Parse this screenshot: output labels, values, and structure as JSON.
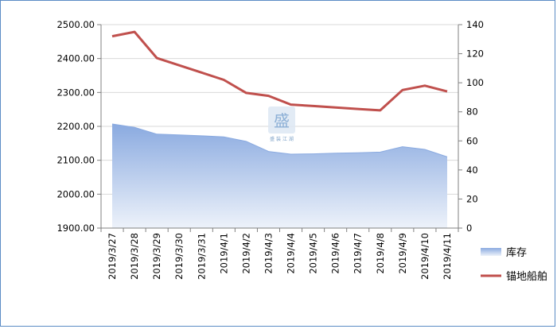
{
  "chart_data": {
    "type": "area+line",
    "categories": [
      "2019/3/27",
      "2019/3/28",
      "2019/3/29",
      "2019/3/30",
      "2019/3/31",
      "2019/4/1",
      "2019/4/2",
      "2019/4/3",
      "2019/4/4",
      "2019/4/5",
      "2019/4/6",
      "2019/4/7",
      "2019/4/8",
      "2019/4/9",
      "2019/4/10",
      "2019/4/11"
    ],
    "series": [
      {
        "name": "库存",
        "kind": "area",
        "axis": "left",
        "color": "#8eaee0",
        "values": [
          2207,
          2197,
          2177,
          2175,
          2172,
          2169,
          2156,
          2126,
          2118,
          2119,
          2121,
          2122,
          2124,
          2140,
          2132,
          2110
        ]
      },
      {
        "name": "锚地船舶",
        "kind": "line",
        "axis": "right",
        "color": "#c0504d",
        "values": [
          132,
          135,
          117,
          112,
          107,
          102,
          93,
          91,
          85,
          84,
          83,
          82,
          81,
          95,
          98,
          94
        ]
      }
    ],
    "y_left": {
      "min": 1900,
      "max": 2500,
      "step": 100,
      "ticks": [
        "1900.00",
        "2000.00",
        "2100.00",
        "2200.00",
        "2300.00",
        "2400.00",
        "2500.00"
      ]
    },
    "y_right": {
      "min": 0,
      "max": 140,
      "step": 20,
      "ticks": [
        "0",
        "20",
        "40",
        "60",
        "80",
        "100",
        "120",
        "140"
      ]
    },
    "grid": true,
    "legend_position": "right"
  },
  "watermark": {
    "text": "盛 装 江 湖"
  }
}
